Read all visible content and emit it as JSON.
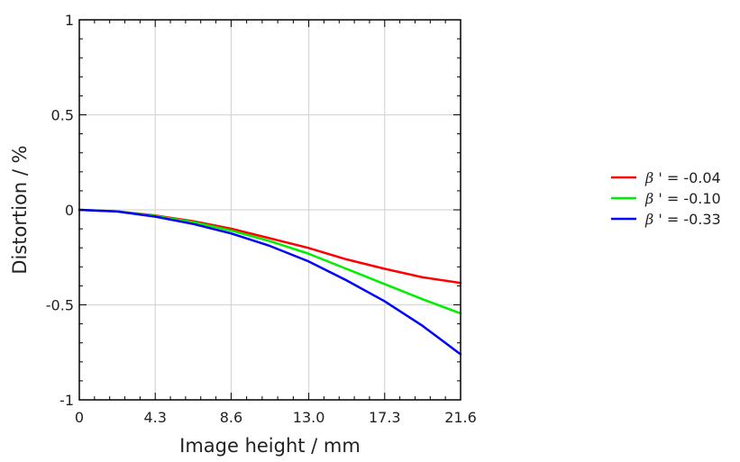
{
  "chart_data": {
    "type": "line",
    "xlabel": "Image height / mm",
    "ylabel": "Distortion / %",
    "xlim": [
      0,
      21.6
    ],
    "ylim": [
      -1,
      1
    ],
    "x_ticks": [
      {
        "value": 0,
        "label": "0"
      },
      {
        "value": 4.3,
        "label": "4.3"
      },
      {
        "value": 8.6,
        "label": "8.6"
      },
      {
        "value": 13.0,
        "label": "13.0"
      },
      {
        "value": 17.3,
        "label": "17.3"
      },
      {
        "value": 21.6,
        "label": "21.6"
      }
    ],
    "y_ticks": [
      {
        "value": 1,
        "label": "1"
      },
      {
        "value": 0.5,
        "label": "0.5"
      },
      {
        "value": 0,
        "label": "0"
      },
      {
        "value": -0.5,
        "label": "-0.5"
      },
      {
        "value": -1,
        "label": "-1"
      }
    ],
    "grid": true,
    "legend_position": "right",
    "x": [
      0,
      2.16,
      4.32,
      6.48,
      8.64,
      10.8,
      12.96,
      15.12,
      17.28,
      19.44,
      21.6
    ],
    "series": [
      {
        "name_symbol": "β",
        "name_suffix": " ' = -0.04",
        "color": "#ff0000",
        "values": [
          0,
          -0.008,
          -0.03,
          -0.06,
          -0.1,
          -0.15,
          -0.2,
          -0.26,
          -0.31,
          -0.355,
          -0.385
        ]
      },
      {
        "name_symbol": "β",
        "name_suffix": " ' = -0.10",
        "color": "#00ee00",
        "values": [
          0,
          -0.008,
          -0.032,
          -0.065,
          -0.11,
          -0.165,
          -0.23,
          -0.31,
          -0.39,
          -0.47,
          -0.545
        ]
      },
      {
        "name_symbol": "β",
        "name_suffix": " ' = -0.33",
        "color": "#0000ff",
        "values": [
          0,
          -0.009,
          -0.036,
          -0.075,
          -0.125,
          -0.19,
          -0.27,
          -0.37,
          -0.48,
          -0.61,
          -0.76
        ]
      }
    ]
  }
}
